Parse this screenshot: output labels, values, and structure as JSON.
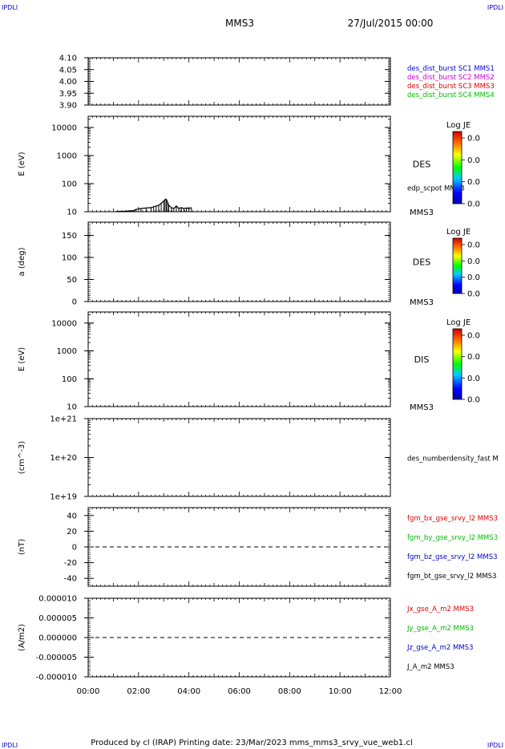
{
  "corner_labels": {
    "top_left": "IPDLI",
    "top_right": "IPDLI",
    "bottom_left": "IPDLI",
    "bottom_right": "IPDLI"
  },
  "header": {
    "spacecraft": "MMS3",
    "date_time": "27/Jul/2015 00:00"
  },
  "footer": {
    "text": "Produced by cl (IRAP)   Printing date: 23/Mar/2023   mms_mms3_srvy_vue_web1.cl"
  },
  "colors": {
    "blue": "#0000cc",
    "magenta": "#cc00cc",
    "red": "#dd0000",
    "green": "#00bb00",
    "black": "#000000"
  },
  "x_axis": {
    "range_hours": [
      0,
      12
    ],
    "ticks": [
      "00:00",
      "02:00",
      "04:00",
      "06:00",
      "08:00",
      "10:00",
      "12:00"
    ]
  },
  "chart_data": [
    {
      "type": "line",
      "id": "p1",
      "ylabel": "",
      "ylim": [
        3.9,
        4.1
      ],
      "yticks": [
        {
          "v": 4.1,
          "label": "4.10"
        },
        {
          "v": 4.05,
          "label": "4.05"
        },
        {
          "v": 4.0,
          "label": "4.00"
        },
        {
          "v": 3.95,
          "label": "3.95"
        },
        {
          "v": 3.9,
          "label": "3.90"
        }
      ],
      "legend": [
        {
          "text": "des_dist_burst SC1 MMS1",
          "color": "#0000cc"
        },
        {
          "text": "des_dist_burst SC2 MMS2",
          "color": "#cc00cc"
        },
        {
          "text": "des_dist_burst SC3 MMS3",
          "color": "#dd0000"
        },
        {
          "text": "des_dist_burst SC4 MMS4",
          "color": "#00bb00"
        }
      ],
      "series": []
    },
    {
      "type": "heatmap",
      "id": "p2",
      "ylabel": "E (eV)",
      "yscale": "log",
      "ylim": [
        10,
        25000
      ],
      "yticks": [
        {
          "v": 10,
          "label": "10"
        },
        {
          "v": 100,
          "label": "100"
        },
        {
          "v": 1000,
          "label": "1000"
        },
        {
          "v": 10000,
          "label": "10000"
        }
      ],
      "species": "DES",
      "bottom_label": "MMS3",
      "overlay_label": "edp_scpot MMS3",
      "colorbar": {
        "title": "Log JE",
        "ticks": [
          "0.0",
          "0.0",
          "0.0",
          "0.0"
        ]
      },
      "series": [
        {
          "name": "edp_scpot MMS3",
          "x": [
            1.1,
            1.5,
            1.8,
            1.9,
            2.1,
            2.3,
            2.5,
            2.6,
            2.7,
            2.8,
            2.9,
            3.0,
            3.05,
            3.1,
            3.15,
            3.2,
            3.3,
            3.4,
            3.5,
            3.6,
            3.7,
            3.8,
            3.9,
            4.0,
            4.1
          ],
          "y": [
            10.2,
            10.5,
            11,
            12,
            13,
            13.5,
            14,
            15,
            16,
            17,
            20,
            24,
            27,
            28,
            22,
            17,
            14,
            13,
            16,
            13,
            14,
            13,
            13.5,
            13,
            14
          ]
        }
      ]
    },
    {
      "type": "heatmap",
      "id": "p3",
      "ylabel": "a (deg)",
      "yscale": "linear",
      "ylim": [
        0,
        180
      ],
      "yticks": [
        {
          "v": 0,
          "label": "0"
        },
        {
          "v": 50,
          "label": "50"
        },
        {
          "v": 100,
          "label": "100"
        },
        {
          "v": 150,
          "label": "150"
        }
      ],
      "species": "DES",
      "bottom_label": "MMS3",
      "colorbar": {
        "title": "Log JE",
        "ticks": [
          "0.0",
          "0.0",
          "0.0",
          "0.0"
        ]
      },
      "series": []
    },
    {
      "type": "heatmap",
      "id": "p4",
      "ylabel": "E (eV)",
      "yscale": "log",
      "ylim": [
        10,
        25000
      ],
      "yticks": [
        {
          "v": 10,
          "label": "10"
        },
        {
          "v": 100,
          "label": "100"
        },
        {
          "v": 1000,
          "label": "1000"
        },
        {
          "v": 10000,
          "label": "10000"
        }
      ],
      "species": "DIS",
      "bottom_label": "MMS3",
      "colorbar": {
        "title": "Log JE",
        "ticks": [
          "0.0",
          "0.0",
          "0.0",
          "0.0"
        ]
      },
      "series": []
    },
    {
      "type": "line",
      "id": "p5",
      "ylabel": "(cm^-3)",
      "yscale": "log",
      "ylim": [
        1e+19,
        1e+21
      ],
      "yticks": [
        {
          "v": 1e+19,
          "label": "1e+19"
        },
        {
          "v": 1e+20,
          "label": "1e+20"
        },
        {
          "v": 1e+21,
          "label": "1e+21"
        }
      ],
      "legend": [
        {
          "text": "des_numberdensity_fast M",
          "color": "#000000"
        }
      ],
      "series": []
    },
    {
      "type": "line",
      "id": "p6",
      "ylabel": "(nT)",
      "ylim": [
        -50,
        50
      ],
      "yticks": [
        {
          "v": 40,
          "label": "40"
        },
        {
          "v": 20,
          "label": "20"
        },
        {
          "v": 0,
          "label": "0"
        },
        {
          "v": -20,
          "label": "-20"
        },
        {
          "v": -40,
          "label": "-40"
        }
      ],
      "zero_line": true,
      "legend": [
        {
          "text": "fgm_bx_gse_srvy_l2 MMS3",
          "color": "#dd0000"
        },
        {
          "text": "fgm_by_gse_srvy_l2 MMS3",
          "color": "#00bb00"
        },
        {
          "text": "fgm_bz_gse_srvy_l2 MMS3",
          "color": "#0000cc"
        },
        {
          "text": "fgm_bt_gse_srvy_l2 MMS3",
          "color": "#000000"
        }
      ],
      "series": []
    },
    {
      "type": "line",
      "id": "p7",
      "ylabel": "(A/m2)",
      "ylim": [
        -1e-05,
        1e-05
      ],
      "yticks": [
        {
          "v": 1e-05,
          "label": "0.000010"
        },
        {
          "v": 5e-06,
          "label": "0.000005"
        },
        {
          "v": 0,
          "label": "0.000000"
        },
        {
          "v": -5e-06,
          "label": "-0.000005"
        },
        {
          "v": -1e-05,
          "label": "-0.000010"
        }
      ],
      "zero_line": true,
      "legend": [
        {
          "text": "Jx_gse_A_m2 MMS3",
          "color": "#dd0000"
        },
        {
          "text": "Jy_gse_A_m2 MMS3",
          "color": "#00bb00"
        },
        {
          "text": "Jz_gse_A_m2 MMS3",
          "color": "#0000cc"
        },
        {
          "text": "J_A_m2 MMS3",
          "color": "#000000"
        }
      ],
      "series": []
    }
  ]
}
